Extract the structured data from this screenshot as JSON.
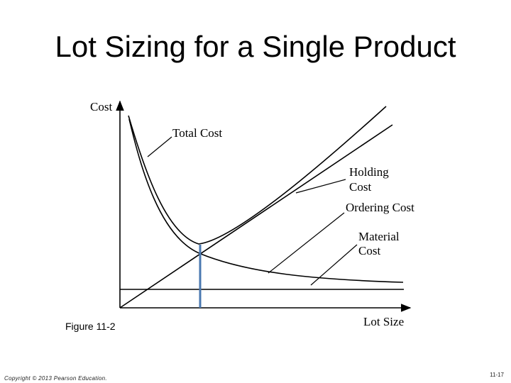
{
  "slide": {
    "title": "Lot Sizing for a Single Product",
    "figure_label": "Figure 11-2",
    "copyright": "Copyright © 2013 Pearson Education.",
    "slide_number": "11-17"
  },
  "diagram": {
    "y_axis_label": "Cost",
    "x_axis_label": "Lot Size",
    "curve_labels": {
      "total_cost": "Total Cost",
      "holding_cost_line1": "Holding",
      "holding_cost_line2": "Cost",
      "ordering_cost": "Ordering Cost",
      "material_cost_line1": "Material",
      "material_cost_line2": "Cost"
    },
    "colors": {
      "curves": "#000000",
      "optimal_lot_marker": "#4a78b0"
    }
  }
}
